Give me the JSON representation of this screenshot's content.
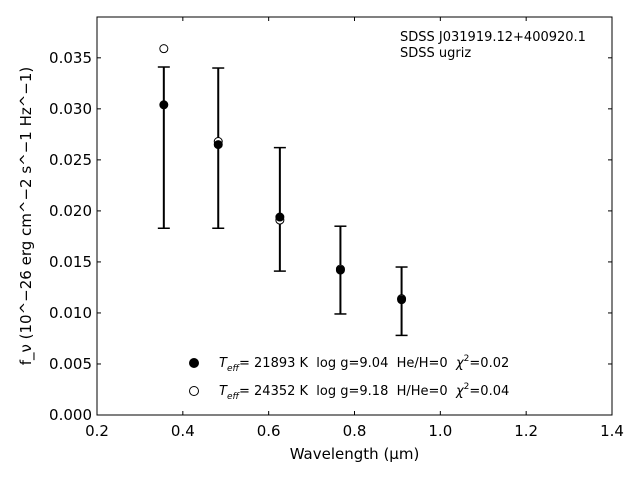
{
  "chart_data": {
    "type": "scatter",
    "annotation": [
      "SDSS J031919.12+400920.1",
      "SDSS ugriz"
    ],
    "xlabel": "Wavelength (μm)",
    "ylabel": "f_ν (10^−26 erg cm^−2 s^−1 Hz^−1)",
    "xlim": [
      0.2,
      1.4
    ],
    "ylim": [
      0.0,
      0.039
    ],
    "x_ticks": [
      0.2,
      0.4,
      0.6,
      0.8,
      1.0,
      1.2,
      1.4
    ],
    "x_tick_labels": [
      "0.2",
      "0.4",
      "0.6",
      "0.8",
      "1.0",
      "1.2",
      "1.4"
    ],
    "y_ticks": [
      0.0,
      0.005,
      0.01,
      0.015,
      0.02,
      0.025,
      0.03,
      0.035
    ],
    "y_tick_labels": [
      "0.000",
      "0.005",
      "0.010",
      "0.015",
      "0.020",
      "0.025",
      "0.030",
      "0.035"
    ],
    "grid": false,
    "legend_position": "lower-center",
    "observed": {
      "x": [
        0.3557,
        0.4825,
        0.6261,
        0.7672,
        0.9097
      ],
      "y": [
        0.0305,
        0.0266,
        0.0193,
        0.0143,
        0.0113
      ],
      "err_low": [
        0.0183,
        0.0183,
        0.0141,
        0.0099,
        0.0078
      ],
      "err_high": [
        0.0341,
        0.034,
        0.0262,
        0.0185,
        0.0145
      ]
    },
    "series": [
      {
        "name": "T_eff= 21893 K  log g=9.04  He/H=0  χ²=0.02",
        "label_parts": {
          "sym": "T",
          "sub": "eff",
          "value": "= 21893 K  log g=9.04  He/H=0  ",
          "chi": "χ",
          "sup": "2",
          "chi_value": "=0.02"
        },
        "marker": "filled-circle",
        "x": [
          0.3557,
          0.4825,
          0.6261,
          0.7672,
          0.9097
        ],
        "y": [
          0.0304,
          0.0265,
          0.0194,
          0.0142,
          0.0113
        ]
      },
      {
        "name": "T_eff= 24352 K  log g=9.18  H/He=0  χ²=0.04",
        "label_parts": {
          "sym": "T",
          "sub": "eff",
          "value": "= 24352 K  log g=9.18  H/He=0  ",
          "chi": "χ",
          "sup": "2",
          "chi_value": "=0.04"
        },
        "marker": "open-circle",
        "x": [
          0.3557,
          0.4825,
          0.6261,
          0.7672,
          0.9097
        ],
        "y": [
          0.0359,
          0.0268,
          0.0191,
          0.0143,
          0.0114
        ]
      }
    ]
  }
}
